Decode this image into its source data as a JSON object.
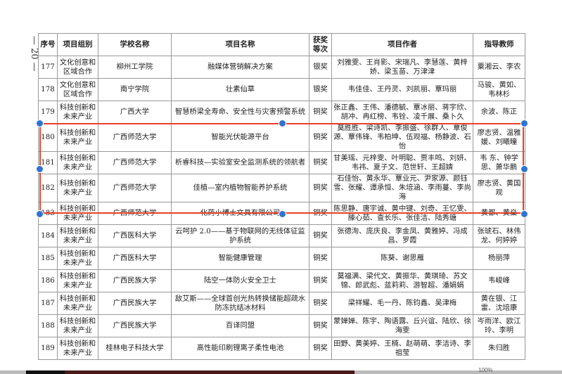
{
  "page_number": "— 20 —",
  "table": {
    "headers": [
      "序号",
      "项目组别",
      "学校名称",
      "项目名称",
      "获奖等次",
      "项目作者",
      "指导教师"
    ],
    "rows": [
      [
        "177",
        "文化创意和区域合作",
        "柳州工学院",
        "融媒体营销解决方案",
        "银奖",
        "刘雅雯、王肖影、宋瑞凡、李慧莲、黄梓娇、梁玉苗、万津津",
        "粟湘云、李农"
      ],
      [
        "178",
        "文化创意和区域合作",
        "南宁学院",
        "壮素仙草",
        "银奖",
        "韦佳佳、王丹灵、刘凯丽、覃玛丽",
        "马骏、黄如、韦林杉"
      ],
      [
        "179",
        "科技创新和未来产业",
        "广西大学",
        "智慧桥梁全寿命、安全性与灾害预警系统",
        "铜奖",
        "张正鑫、王伟、潘德毓、覃冰丽、蒋宇欣、胡冲、冉红榜、韦铨、凌千展、桑卜久",
        "余波、陈正"
      ],
      [
        "180",
        "科技创新和未来产业",
        "广西师范大学",
        "智能光伏能源平台",
        "铜奖",
        "莫胜胜、梁诗凯、李振盛、徐群人、覃俊源、覃伟锋、韦柏坤、伍观福、杨静波、石怡",
        "廖志贤、温雅媛、刘曦瞳"
      ],
      [
        "181",
        "科技创新和未来产业",
        "广西师范大学",
        "析睿科技—实验室安全监测系统的领航者",
        "铜奖",
        "甘美瑶、元梓雯、叶明聪、贾丰鸣、刘妍、韦祎、夏子文、范世轩、王超婧",
        "韦 东、钟学思、萧华鹏"
      ],
      [
        "182",
        "科技创新和未来产业",
        "广西师范大学",
        "佳植—室内植物智能养护系统",
        "铜奖",
        "石佳怡、黄永华、覃业元、尹家源、颜钰雪、张耀、谭承恒、朱培涵、李雨蔓、李尚海",
        "廖志贤、黄国观"
      ],
      [
        "183",
        "科技创新和未来产业",
        "广西师范大学",
        "化药小博士文具有限公司",
        "铜奖",
        "陈思静、唐宇诚、黄中键、刘奇、王忆雯、滕心茹、查长乐、张佳洁、陆秀瑭",
        "黄都、黄燊"
      ],
      [
        "184",
        "科技创新和未来产业",
        "广西医科大学",
        "云呵护 2.0——基于物联网的无线体征监护系统",
        "铜奖",
        "张德洵、庞庆良、李金凤、黄雅婷、冯成昌、罗霞",
        "张琥石、林伟龙、何婷婷"
      ],
      [
        "185",
        "科技创新和未来产业",
        "广西医科大学",
        "智能健康管理",
        "铜奖",
        "陈葵、谢思雁",
        "杨丽萍"
      ],
      [
        "186",
        "科技创新和未来产业",
        "广西民族大学",
        "陆空一体防火安全卫士",
        "铜奖",
        "莫福满、梁代文、黄振华、黄琪琦、苏文锦、郎武彪、蓝莉莉、游智超、潘娟娟",
        "韦峻峰"
      ],
      [
        "187",
        "科技创新和未来产业",
        "广西民族大学",
        "敌艾斯——全球首创光热转换储能超疏水防冻抗结冰材料",
        "铜奖",
        "梁祥耀、毛一丹、陈钧鑫、吴津梅",
        "黄在银、江雷、沈培康"
      ],
      [
        "188",
        "科技创新和未来产业",
        "广西民族大学",
        "百译同盟",
        "铜奖",
        "蒙婵婵、陈宇、陶语露、丘兴谊、陆欣、徐海雯",
        "岑雨洋、欧江玲、李明"
      ],
      [
        "189",
        "科技创新和未来产业",
        "桂林电子科技大学",
        "高性能印刷锂离子柔性电池",
        "铜奖",
        "田野、黄美婷、王楠、赵萌萌、李洁诗、李祖莹",
        "朱归胜"
      ]
    ]
  },
  "selection": {
    "color": "#e8402a",
    "handle_color": "#2f74d0",
    "selected_rows": [
      "180",
      "181",
      "182",
      "183"
    ]
  },
  "status_bar": {
    "zoom": "100%"
  }
}
